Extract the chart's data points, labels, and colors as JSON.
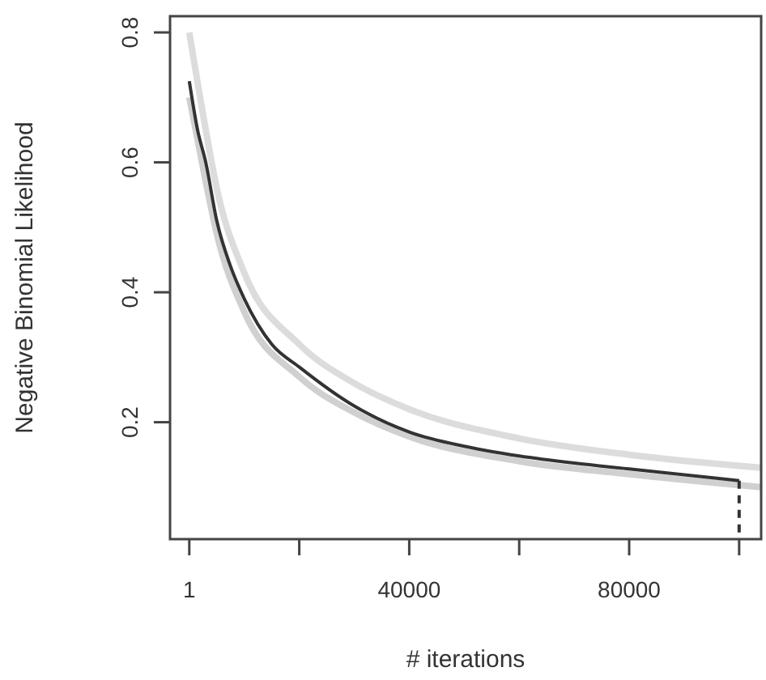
{
  "chart_data": {
    "type": "line",
    "xlabel": "# iterations",
    "ylabel": "Negative Binomial Likelihood",
    "xlim": [
      -3500,
      104000
    ],
    "ylim": [
      0.02,
      0.825
    ],
    "xticks": [
      1,
      {
        "value": 20000,
        "label": null
      },
      40000,
      {
        "value": 60000,
        "label": null
      },
      80000,
      {
        "value": 100000,
        "label": null
      }
    ],
    "yticks": [
      0.2,
      0.4,
      0.6,
      0.8
    ],
    "series": [
      {
        "color": "#dcdcdc",
        "x": [
          1,
          3000,
          5000,
          10000,
          20000,
          30000,
          40000,
          60000,
          80000,
          104000
        ],
        "values": [
          0.8,
          0.65,
          0.56,
          0.43,
          0.32,
          0.26,
          0.22,
          0.175,
          0.15,
          0.13
        ]
      },
      {
        "color": "#d0d0d0",
        "x": [
          1,
          3000,
          5000,
          10000,
          20000,
          30000,
          40000,
          60000,
          80000,
          104000
        ],
        "values": [
          0.7,
          0.57,
          0.49,
          0.37,
          0.27,
          0.215,
          0.178,
          0.14,
          0.12,
          0.1
        ]
      },
      {
        "color": "#333333",
        "x": [
          1,
          1500,
          3000,
          5000,
          7500,
          10000,
          15000,
          20000,
          30000,
          40000,
          50000,
          60000,
          70000,
          80000,
          90000,
          100000
        ],
        "values": [
          0.725,
          0.65,
          0.6,
          0.51,
          0.44,
          0.39,
          0.32,
          0.285,
          0.225,
          0.185,
          0.163,
          0.148,
          0.137,
          0.128,
          0.119,
          0.11
        ]
      }
    ],
    "ref_lines": [
      {
        "axis": "x",
        "value": 100000,
        "line_style": "dashed",
        "color": "#333333"
      }
    ],
    "grid": false
  }
}
